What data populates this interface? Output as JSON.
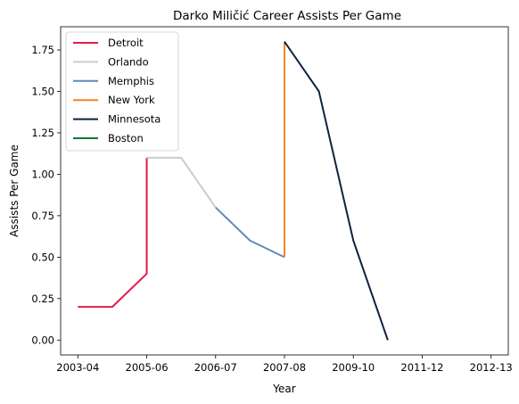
{
  "chart_data": {
    "type": "line",
    "title": "Darko Miličić Career Assists Per Game",
    "xlabel": "Year",
    "ylabel": "Assists Per Game",
    "x_tick_labels": [
      "2003-04",
      "2005-06",
      "2006-07",
      "2007-08",
      "2009-10",
      "2011-12",
      "2012-13"
    ],
    "x_tick_positions": [
      0,
      2,
      4,
      6,
      8,
      10,
      12
    ],
    "xlim": [
      -0.5,
      12.5
    ],
    "ylim": [
      -0.09,
      1.89
    ],
    "y_ticks": [
      0.0,
      0.25,
      0.5,
      0.75,
      1.0,
      1.25,
      1.5,
      1.75
    ],
    "grid": false,
    "legend_position": "top-left",
    "series": [
      {
        "name": "Detroit",
        "color": "#e31b4a",
        "x": [
          0,
          1,
          2,
          2
        ],
        "y": [
          0.2,
          0.2,
          0.4,
          1.1
        ]
      },
      {
        "name": "Orlando",
        "color": "#c4ced4",
        "x": [
          2,
          3,
          4
        ],
        "y": [
          1.1,
          1.1,
          0.8
        ]
      },
      {
        "name": "Memphis",
        "color": "#6189b9",
        "x": [
          4,
          5,
          6,
          6
        ],
        "y": [
          0.8,
          0.6,
          0.5,
          0.5
        ]
      },
      {
        "name": "New York",
        "color": "#f58426",
        "x": [
          6,
          6
        ],
        "y": [
          0.5,
          1.8
        ]
      },
      {
        "name": "Minnesota",
        "color": "#0c2340",
        "x": [
          6,
          7,
          8,
          9
        ],
        "y": [
          1.8,
          1.5,
          0.6,
          0.0
        ]
      },
      {
        "name": "Boston",
        "color": "#007a33",
        "x": [],
        "y": []
      }
    ]
  }
}
